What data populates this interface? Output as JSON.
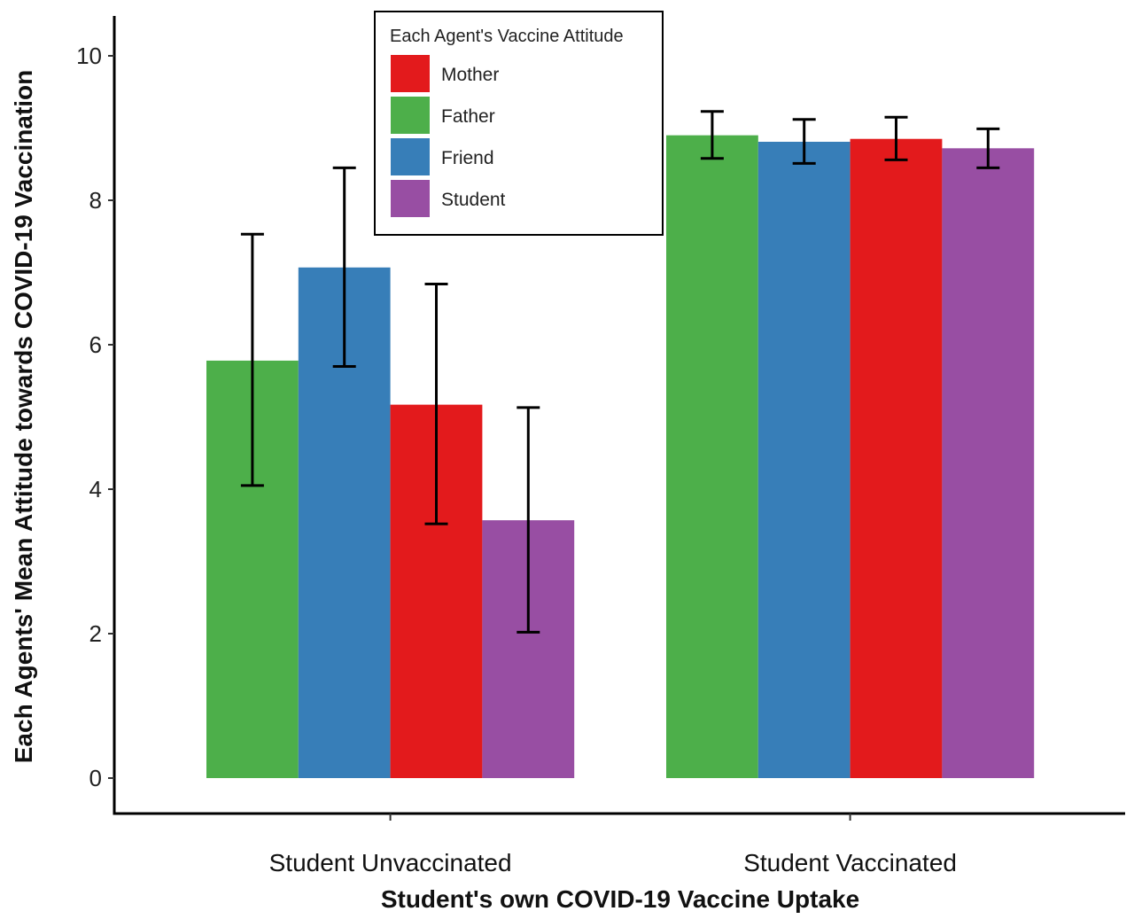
{
  "chart_data": {
    "type": "bar",
    "xlabel": "Student's own COVID-19 Vaccine Uptake",
    "ylabel": "Each Agents' Mean Attitude towards COVID-19 Vaccination",
    "categories": [
      "Student Unvaccinated",
      "Student Vaccinated"
    ],
    "ylim": [
      0,
      10.3
    ],
    "yticks": [
      0,
      2,
      4,
      6,
      8,
      10
    ],
    "grid": false,
    "legend": {
      "title": "Each Agent's Vaccine Attitude",
      "placement": "top-center",
      "entries": [
        {
          "name": "Mother",
          "color": "#e31a1c"
        },
        {
          "name": "Father",
          "color": "#4daf4a"
        },
        {
          "name": "Friend",
          "color": "#377eb8"
        },
        {
          "name": "Student",
          "color": "#984ea3"
        }
      ]
    },
    "bar_order": [
      "Father",
      "Friend",
      "Mother",
      "Student"
    ],
    "series": [
      {
        "name": "Father",
        "color": "#4daf4a",
        "values": [
          5.78,
          8.9
        ],
        "error_low": [
          4.05,
          8.58
        ],
        "error_high": [
          7.53,
          9.23
        ]
      },
      {
        "name": "Friend",
        "color": "#377eb8",
        "values": [
          7.07,
          8.81
        ],
        "error_low": [
          5.7,
          8.51
        ],
        "error_high": [
          8.45,
          9.12
        ]
      },
      {
        "name": "Mother",
        "color": "#e31a1c",
        "values": [
          5.17,
          8.85
        ],
        "error_low": [
          3.52,
          8.56
        ],
        "error_high": [
          6.84,
          9.15
        ]
      },
      {
        "name": "Student",
        "color": "#984ea3",
        "values": [
          3.57,
          8.72
        ],
        "error_low": [
          2.02,
          8.45
        ],
        "error_high": [
          5.13,
          8.99
        ]
      }
    ]
  }
}
